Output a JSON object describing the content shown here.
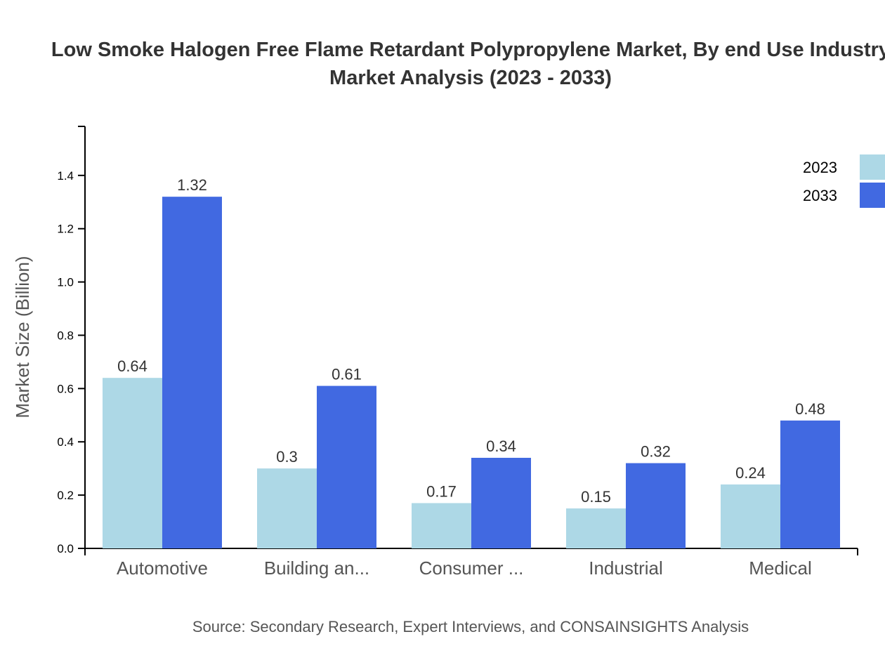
{
  "chart_data": {
    "type": "bar",
    "title": "Low Smoke Halogen Free Flame Retardant Polypropylene Market, By end Use Industry",
    "subtitle": "Market Analysis (2023 - 2033)",
    "ylabel": "Market Size (Billion)",
    "xlabel": "",
    "categories": [
      "Automotive",
      "Building an...",
      "Consumer ...",
      "Industrial",
      "Medical"
    ],
    "series": [
      {
        "name": "2023",
        "color": "#ADD8E6",
        "values": [
          0.64,
          0.3,
          0.17,
          0.15,
          0.24
        ],
        "labels": [
          "0.64",
          "0.3",
          "0.17",
          "0.15",
          "0.24"
        ]
      },
      {
        "name": "2033",
        "color": "#4169E1",
        "values": [
          1.32,
          0.61,
          0.34,
          0.32,
          0.48
        ],
        "labels": [
          "1.32",
          "0.61",
          "0.34",
          "0.32",
          "0.48"
        ]
      }
    ],
    "ylim": [
      0,
      1.584
    ],
    "yticks": [
      "0.0",
      "0.2",
      "0.4",
      "0.6",
      "0.8",
      "1.0",
      "1.2",
      "1.4"
    ],
    "grid": false,
    "legend": "top-right",
    "source": "Source: Secondary Research, Expert Interviews, and CONSAINSIGHTS Analysis"
  }
}
